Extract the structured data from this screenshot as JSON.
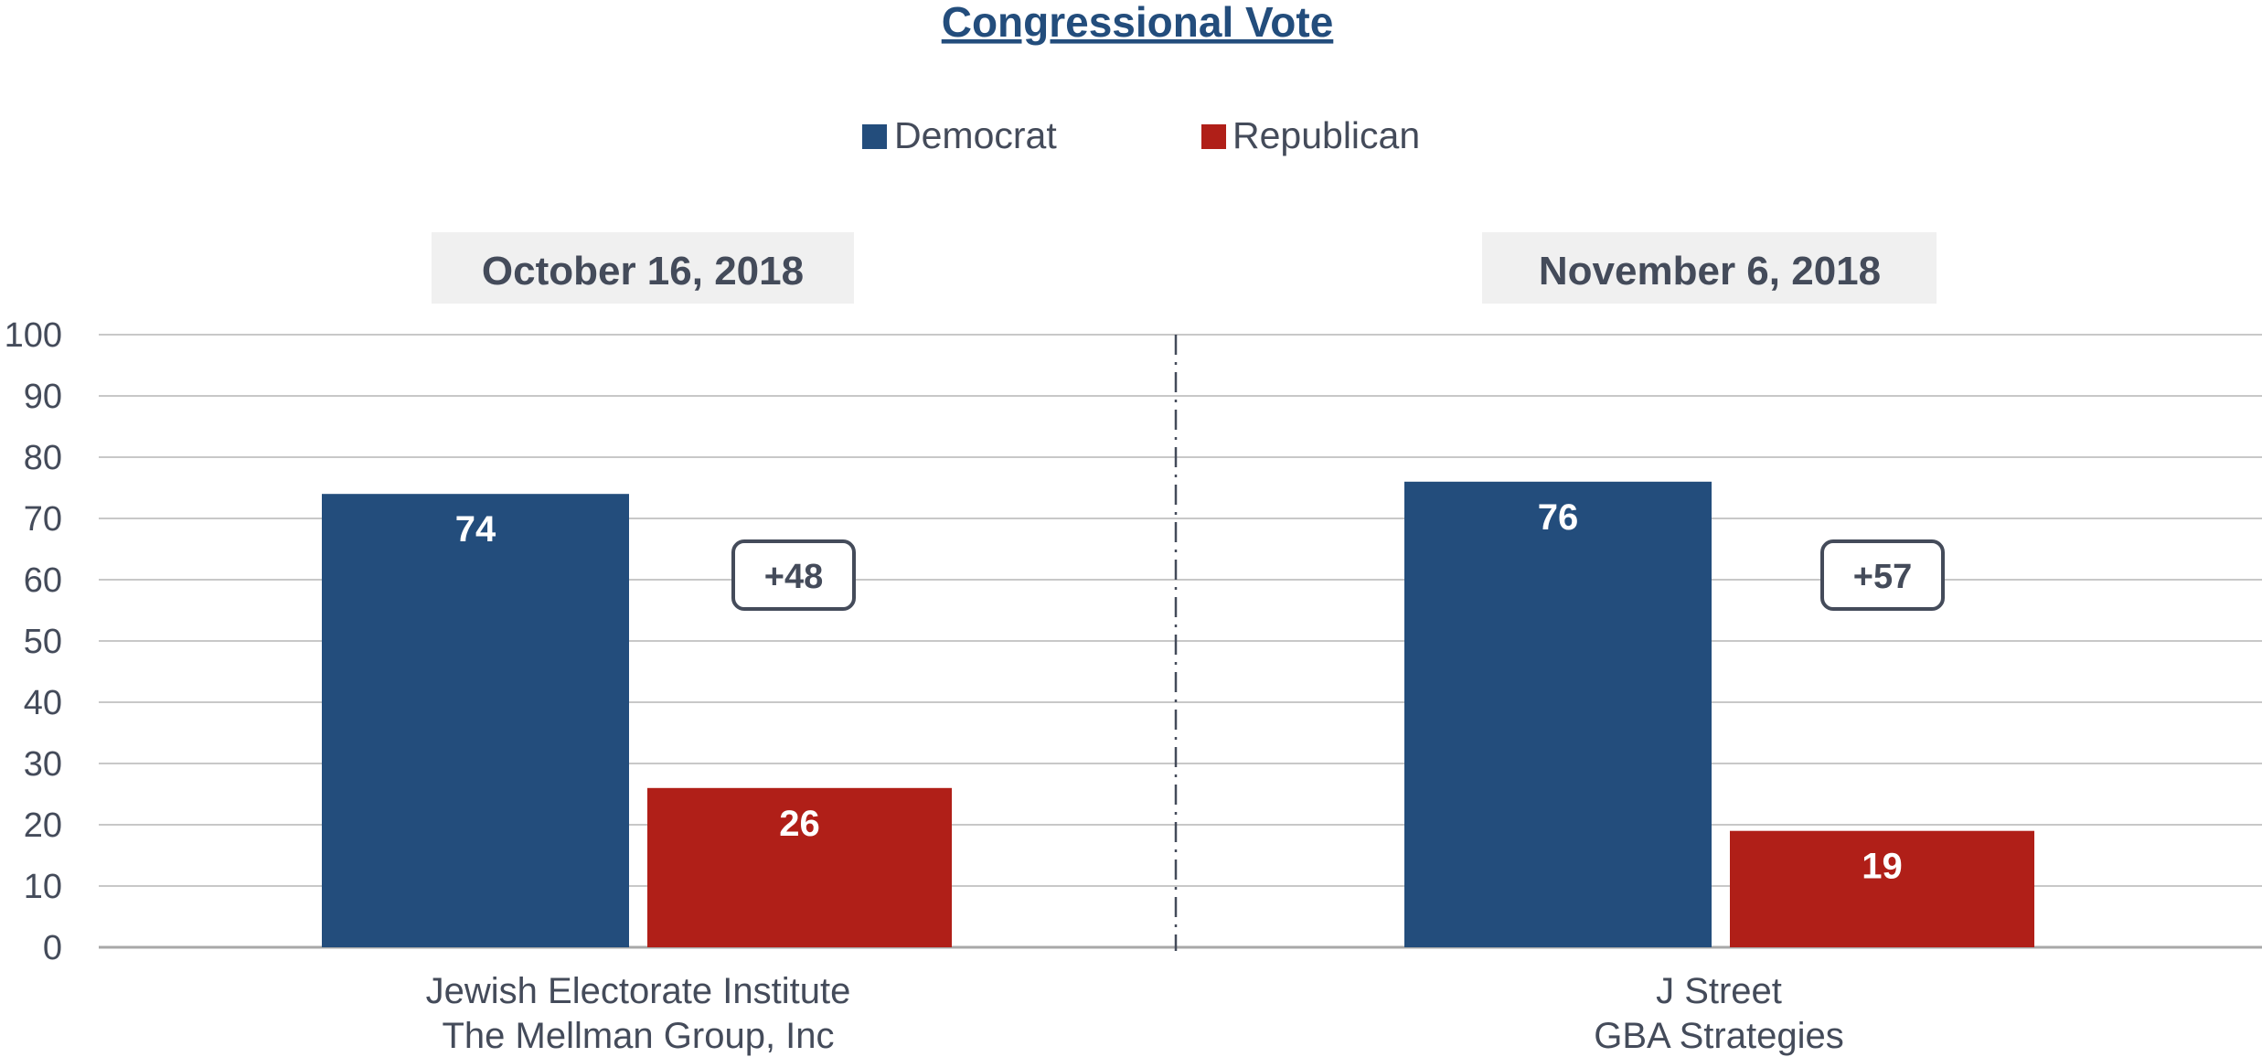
{
  "colors": {
    "democrat": "#234d7c",
    "republican": "#b01f18",
    "grid": "#c8c8c8",
    "text": "#444b5a",
    "panel_bg": "#f0f0f0"
  },
  "chart_data": {
    "type": "bar",
    "title": "Congressional Vote",
    "ylim": [
      0,
      100
    ],
    "yticks": [
      0,
      10,
      20,
      30,
      40,
      50,
      60,
      70,
      80,
      90,
      100
    ],
    "grid": true,
    "legend_position": "top",
    "categories": [
      [
        "Jewish Electorate Institute",
        "The Mellman Group, Inc"
      ],
      [
        "J Street",
        "GBA Strategies"
      ]
    ],
    "panel_labels": [
      "October 16, 2018",
      "November 6, 2018"
    ],
    "series": [
      {
        "name": "Democrat",
        "values": [
          74,
          76
        ]
      },
      {
        "name": "Republican",
        "values": [
          26,
          19
        ]
      }
    ],
    "margin_labels": [
      "+48",
      "+57"
    ]
  }
}
